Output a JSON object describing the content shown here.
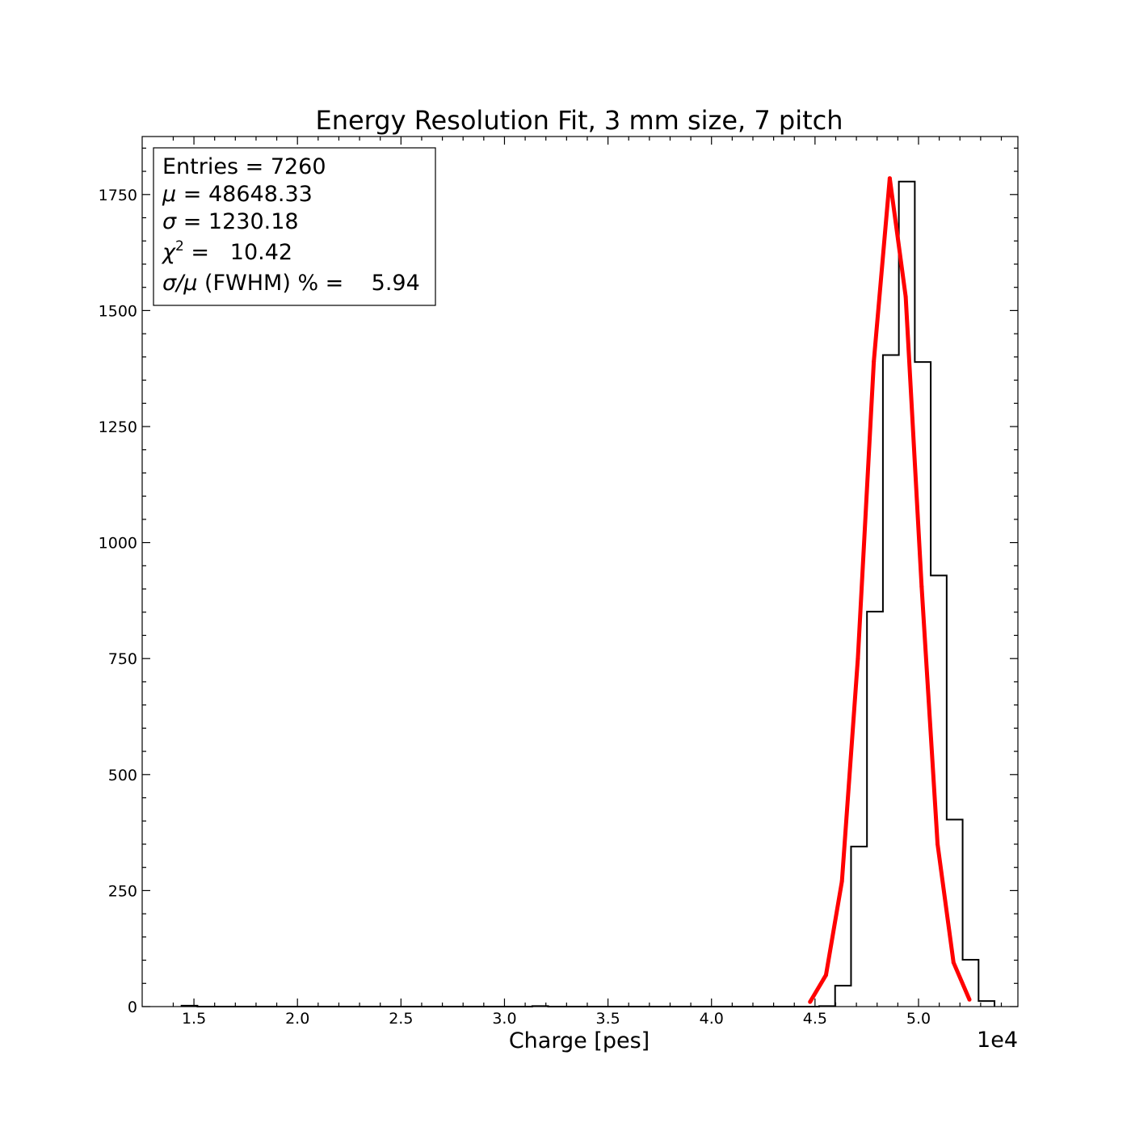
{
  "chart_data": {
    "type": "histogram",
    "title": "Energy Resolution Fit, 3 mm size, 7 pitch",
    "xlabel": "Charge [pes]",
    "ylabel": "",
    "x_offset_label": "1e4",
    "xlim": [
      12500,
      54800
    ],
    "ylim": [
      0,
      1875
    ],
    "x_ticks": [
      {
        "value": 15000,
        "label": "1.5"
      },
      {
        "value": 20000,
        "label": "2.0"
      },
      {
        "value": 25000,
        "label": "2.5"
      },
      {
        "value": 30000,
        "label": "3.0"
      },
      {
        "value": 35000,
        "label": "3.5"
      },
      {
        "value": 40000,
        "label": "4.0"
      },
      {
        "value": 45000,
        "label": "4.5"
      },
      {
        "value": 50000,
        "label": "5.0"
      }
    ],
    "y_ticks": [
      {
        "value": 0,
        "label": "0"
      },
      {
        "value": 250,
        "label": "250"
      },
      {
        "value": 500,
        "label": "500"
      },
      {
        "value": 750,
        "label": "750"
      },
      {
        "value": 1000,
        "label": "1000"
      },
      {
        "value": 1250,
        "label": "1250"
      },
      {
        "value": 1500,
        "label": "1500"
      },
      {
        "value": 1750,
        "label": "1750"
      }
    ],
    "grid": false,
    "histogram": {
      "name": "data",
      "color": "#000000",
      "bin_start": 14400,
      "bin_width": 770,
      "counts": [
        2,
        0,
        0,
        0,
        0,
        0,
        0,
        0,
        0,
        0,
        0,
        0,
        0,
        0,
        0,
        0,
        0,
        0,
        0,
        0,
        0,
        0,
        1,
        0,
        0,
        0,
        0,
        0,
        0,
        0,
        0,
        0,
        0,
        0,
        0,
        0,
        0,
        0,
        0,
        0,
        1,
        45,
        345,
        851,
        1404,
        1778,
        1389,
        929,
        403,
        101,
        12
      ]
    },
    "fit": {
      "name": "gaussian fit",
      "color": "#ff0000",
      "x": [
        44760,
        45530,
        46300,
        47070,
        47840,
        48610,
        49380,
        50150,
        50920,
        51690,
        52460
      ],
      "y": [
        10,
        68,
        270,
        750,
        1390,
        1785,
        1530,
        905,
        350,
        95,
        15
      ]
    },
    "stats_box": {
      "location": "top-left",
      "lines": [
        {
          "name": "Entries",
          "text": "Entries = 7260"
        },
        {
          "name": "Mean",
          "symbol": "μ",
          "text": " = 48648.33"
        },
        {
          "name": "Sigma",
          "symbol": "σ",
          "text": " = 1230.18"
        },
        {
          "name": "Chi2",
          "symbol": "χ",
          "sup": "2",
          "text": " =   10.42"
        },
        {
          "name": "Resolution",
          "symbol": "σ/μ",
          "text": " (FWHM) % =    5.94"
        }
      ]
    }
  }
}
